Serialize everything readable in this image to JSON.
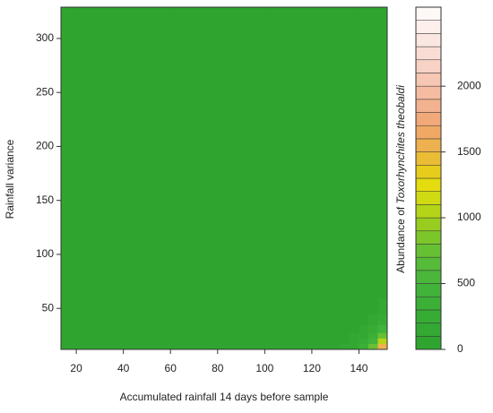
{
  "chart_data": {
    "type": "filled-contour",
    "x_label": "Accumulated rainfall 14 days before sample",
    "y_label": "Rainfall variance",
    "colorbar_label": "Abundance of",
    "colorbar_label_italic": "Toxorhynchites theobaldi",
    "xlim": [
      13.5,
      152
    ],
    "ylim": [
      12,
      329
    ],
    "xticks": [
      20,
      40,
      60,
      80,
      100,
      120,
      140
    ],
    "yticks": [
      50,
      100,
      150,
      200,
      250,
      300
    ],
    "zlim": [
      0,
      2600
    ],
    "zticks": [
      0,
      500,
      1000,
      1500,
      2000
    ],
    "levels": [
      0,
      100,
      200,
      300,
      400,
      500,
      600,
      700,
      800,
      900,
      1000,
      1100,
      1200,
      1300,
      1400,
      1500,
      1600,
      1700,
      1800,
      1900,
      2000,
      2100,
      2200,
      2300,
      2400,
      2500,
      2600
    ],
    "colors": [
      "#2fa52f",
      "#33a833",
      "#37ac35",
      "#3caf37",
      "#42b33a",
      "#4ab73b",
      "#55bb38",
      "#66c033",
      "#7cc62a",
      "#98cd20",
      "#b4d418",
      "#d0da12",
      "#e4dc0e",
      "#e8cc1c",
      "#ebbd35",
      "#eeb14f",
      "#f0a965",
      "#f2a97a",
      "#f3b28f",
      "#f5bca2",
      "#f6c7b3",
      "#f8d2c4",
      "#f9ddd4",
      "#fbe7e1",
      "#fdf0ec",
      "#fef8f6"
    ],
    "x": [
      15,
      25,
      35,
      45,
      55,
      65,
      75,
      85,
      95,
      105,
      115,
      125,
      130,
      134,
      138,
      142,
      146,
      150
    ],
    "y": [
      15,
      20,
      25,
      30,
      40,
      50,
      70,
      100,
      150,
      200,
      250,
      300,
      325
    ],
    "z": [
      [
        40,
        40,
        40,
        40,
        40,
        40,
        40,
        40,
        40,
        40,
        40,
        40,
        67,
        101,
        178,
        345,
        719,
        1556
      ],
      [
        40,
        40,
        40,
        40,
        40,
        40,
        40,
        40,
        40,
        40,
        40,
        40,
        58,
        80,
        130,
        240,
        485,
        1032
      ],
      [
        40,
        40,
        40,
        40,
        40,
        40,
        40,
        40,
        40,
        40,
        40,
        40,
        54,
        71,
        110,
        173,
        336,
        701
      ],
      [
        40,
        40,
        40,
        40,
        40,
        40,
        40,
        40,
        40,
        40,
        40,
        40,
        48,
        57,
        79,
        125,
        232,
        467
      ],
      [
        40,
        40,
        40,
        40,
        40,
        40,
        40,
        40,
        40,
        40,
        40,
        40,
        43,
        48,
        57,
        78,
        124,
        228
      ],
      [
        40,
        40,
        40,
        40,
        40,
        40,
        40,
        40,
        40,
        40,
        40,
        40,
        41,
        43,
        47,
        56,
        77,
        122
      ],
      [
        40,
        40,
        40,
        40,
        40,
        40,
        40,
        40,
        40,
        40,
        40,
        40,
        40,
        40,
        41,
        43,
        47,
        56
      ],
      [
        40,
        40,
        40,
        40,
        40,
        40,
        40,
        40,
        40,
        40,
        40,
        40,
        40,
        40,
        40,
        40,
        40,
        40
      ],
      [
        40,
        40,
        40,
        40,
        40,
        40,
        40,
        40,
        40,
        40,
        40,
        40,
        40,
        40,
        40,
        40,
        40,
        40
      ],
      [
        40,
        40,
        40,
        40,
        40,
        40,
        40,
        40,
        40,
        40,
        40,
        40,
        40,
        40,
        40,
        40,
        40,
        40
      ],
      [
        40,
        40,
        40,
        40,
        40,
        40,
        40,
        40,
        40,
        40,
        40,
        40,
        40,
        40,
        40,
        40,
        40,
        40
      ],
      [
        40,
        40,
        40,
        40,
        40,
        40,
        40,
        40,
        40,
        40,
        40,
        40,
        40,
        40,
        40,
        40,
        40,
        40
      ],
      [
        40,
        40,
        40,
        40,
        40,
        40,
        40,
        40,
        40,
        40,
        40,
        40,
        40,
        40,
        40,
        40,
        40,
        40
      ]
    ]
  }
}
